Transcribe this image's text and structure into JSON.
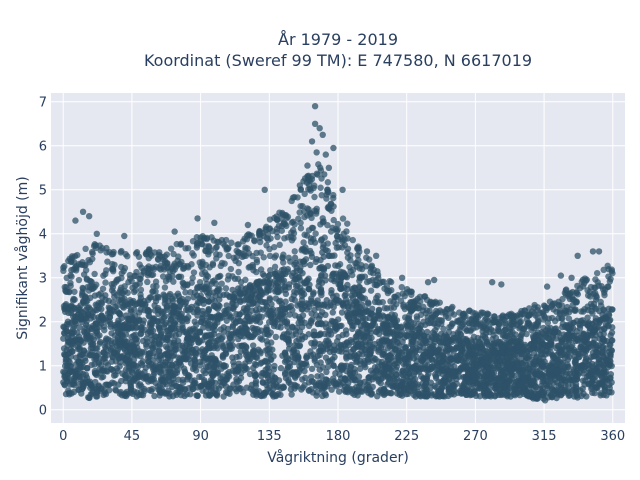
{
  "chart_data": {
    "type": "scatter",
    "title_line1": "År 1979 - 2019",
    "title_line2": "Koordinat (Sweref 99 TM): E 747580, N 6617019",
    "xlabel": "Vågriktning (grader)",
    "ylabel": "Signifikant våghöjd (m)",
    "xlim": [
      -8,
      368
    ],
    "ylim": [
      -0.3,
      7.2
    ],
    "xticks": [
      0,
      45,
      90,
      135,
      180,
      225,
      270,
      315,
      360
    ],
    "xtick_labels": [
      "0",
      "45",
      "90",
      "135",
      "180",
      "225",
      "270",
      "315",
      "360"
    ],
    "yticks": [
      0,
      1,
      2,
      3,
      4,
      5,
      6,
      7
    ],
    "ytick_labels": [
      "0",
      "1",
      "2",
      "3",
      "4",
      "5",
      "6",
      "7"
    ],
    "grid": true,
    "colors": {
      "marker": "#2e5268",
      "plot_bg": "#e5e8f0",
      "grid": "#ffffff",
      "text": "#2a3f5f"
    },
    "envelope": {
      "x": [
        0,
        10,
        20,
        30,
        45,
        60,
        75,
        90,
        105,
        120,
        130,
        140,
        150,
        160,
        165,
        170,
        180,
        190,
        200,
        210,
        225,
        240,
        255,
        270,
        285,
        300,
        315,
        330,
        345,
        355,
        360
      ],
      "y_max": [
        3.3,
        3.6,
        3.7,
        3.6,
        3.5,
        3.6,
        3.7,
        3.9,
        3.8,
        3.9,
        4.1,
        4.4,
        4.7,
        5.3,
        5.6,
        5.4,
        4.6,
        3.9,
        3.4,
        3.0,
        2.7,
        2.5,
        2.3,
        2.2,
        2.1,
        2.2,
        2.5,
        2.7,
        3.0,
        3.2,
        3.3
      ],
      "y_min": [
        0.3,
        0.3,
        0.25,
        0.3,
        0.3,
        0.3,
        0.3,
        0.3,
        0.3,
        0.3,
        0.3,
        0.3,
        0.3,
        0.3,
        0.3,
        0.3,
        0.3,
        0.3,
        0.3,
        0.3,
        0.3,
        0.3,
        0.3,
        0.3,
        0.3,
        0.3,
        0.2,
        0.25,
        0.3,
        0.3,
        0.3
      ]
    },
    "outliers": [
      {
        "x": 165,
        "y": 6.9
      },
      {
        "x": 168,
        "y": 6.4
      },
      {
        "x": 165,
        "y": 6.5
      },
      {
        "x": 170,
        "y": 6.25
      },
      {
        "x": 163,
        "y": 6.1
      },
      {
        "x": 177,
        "y": 5.95
      },
      {
        "x": 172,
        "y": 5.8
      },
      {
        "x": 166,
        "y": 5.85
      },
      {
        "x": 160,
        "y": 5.55
      },
      {
        "x": 174,
        "y": 5.5
      },
      {
        "x": 171,
        "y": 5.35
      },
      {
        "x": 132,
        "y": 5.0
      },
      {
        "x": 155,
        "y": 5.1
      },
      {
        "x": 183,
        "y": 5.0
      },
      {
        "x": 13,
        "y": 4.5
      },
      {
        "x": 17,
        "y": 4.4
      },
      {
        "x": 8,
        "y": 4.3
      },
      {
        "x": 88,
        "y": 4.35
      },
      {
        "x": 99,
        "y": 4.25
      },
      {
        "x": 121,
        "y": 4.2
      },
      {
        "x": 22,
        "y": 4.0
      },
      {
        "x": 40,
        "y": 3.95
      },
      {
        "x": 73,
        "y": 4.05
      },
      {
        "x": 347,
        "y": 3.6
      },
      {
        "x": 351,
        "y": 3.6
      },
      {
        "x": 326,
        "y": 3.05
      },
      {
        "x": 333,
        "y": 3.0
      },
      {
        "x": 222,
        "y": 3.0
      },
      {
        "x": 281,
        "y": 2.9
      },
      {
        "x": 287,
        "y": 2.85
      },
      {
        "x": 317,
        "y": 2.8
      },
      {
        "x": 243,
        "y": 2.95
      },
      {
        "x": 239,
        "y": 2.9
      },
      {
        "x": 337,
        "y": 3.5
      },
      {
        "x": 199,
        "y": 3.6
      },
      {
        "x": 205,
        "y": 3.5
      }
    ]
  }
}
